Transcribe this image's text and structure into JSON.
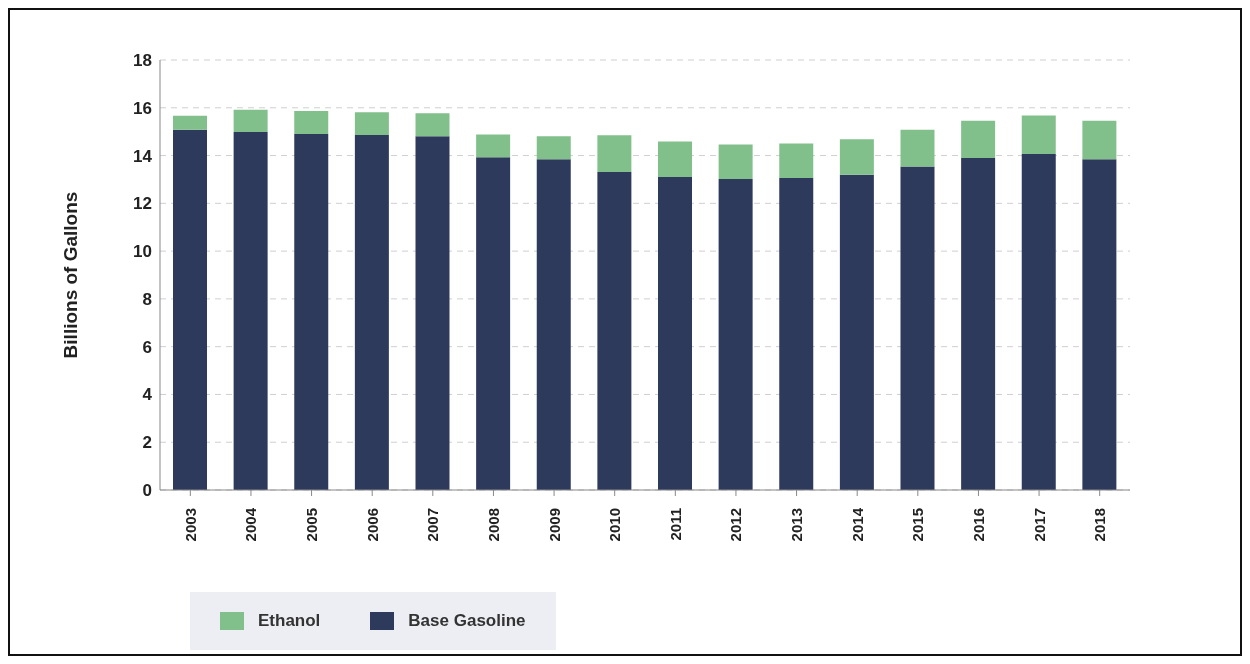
{
  "chart_data": {
    "type": "bar",
    "ylabel": "Billions of Gallons",
    "categories": [
      "2003",
      "2004",
      "2005",
      "2006",
      "2007",
      "2008",
      "2009",
      "2010",
      "2011",
      "2012",
      "2013",
      "2014",
      "2015",
      "2016",
      "2017",
      "2018"
    ],
    "series": [
      {
        "name": "Base Gasoline",
        "color": "#2e3a5c",
        "values": [
          15.08,
          14.99,
          14.9,
          14.86,
          14.81,
          13.93,
          13.85,
          13.31,
          13.1,
          13.02,
          13.06,
          13.2,
          13.54,
          13.9,
          14.06,
          13.85
        ]
      },
      {
        "name": "Ethanol",
        "color": "#82c08b",
        "values": [
          0.59,
          0.93,
          0.96,
          0.95,
          0.96,
          0.95,
          0.96,
          1.54,
          1.49,
          1.44,
          1.44,
          1.48,
          1.54,
          1.56,
          1.62,
          1.61
        ]
      }
    ],
    "stacked": true,
    "ylim": [
      0,
      18
    ],
    "yticks": [
      0,
      2,
      4,
      6,
      8,
      10,
      12,
      14,
      16,
      18
    ],
    "grid": "y",
    "legend": "bottom left"
  }
}
